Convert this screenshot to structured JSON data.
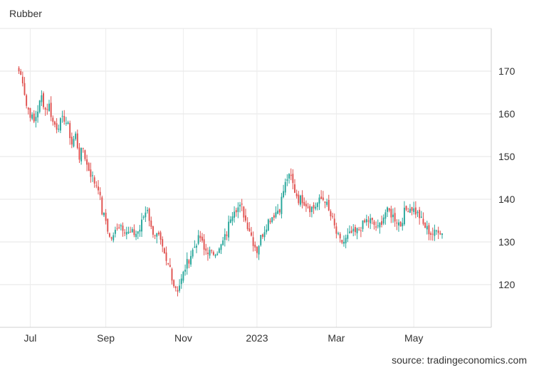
{
  "chart_data": {
    "type": "candlestick",
    "title": "Rubber",
    "source": "source: tradingeconomics.com",
    "ylim": [
      110,
      180
    ],
    "y_ticks": [
      120,
      130,
      140,
      150,
      160,
      170
    ],
    "y_tick_labels": [
      "120",
      "130",
      "140",
      "150",
      "160",
      "170"
    ],
    "x_tick_labels": [
      "Jul",
      "Sep",
      "Nov",
      "2023",
      "Mar",
      "May"
    ],
    "x_tick_positions": [
      6,
      46,
      87,
      126,
      168,
      209
    ],
    "x_range": [
      -10,
      250
    ],
    "grid": true,
    "up_color": "#26a69a",
    "down_color": "#e0514f",
    "anchors": [
      [
        0,
        170
      ],
      [
        2,
        168
      ],
      [
        4,
        162
      ],
      [
        6,
        160
      ],
      [
        8,
        158
      ],
      [
        10,
        161
      ],
      [
        12,
        164
      ],
      [
        14,
        161
      ],
      [
        16,
        162
      ],
      [
        18,
        158
      ],
      [
        20,
        157
      ],
      [
        22,
        158
      ],
      [
        24,
        159
      ],
      [
        26,
        157
      ],
      [
        28,
        153
      ],
      [
        30,
        155
      ],
      [
        32,
        150
      ],
      [
        34,
        152
      ],
      [
        36,
        148
      ],
      [
        38,
        146
      ],
      [
        40,
        144
      ],
      [
        42,
        143
      ],
      [
        44,
        137
      ],
      [
        46,
        135
      ],
      [
        48,
        131
      ],
      [
        50,
        131
      ],
      [
        52,
        134
      ],
      [
        54,
        134
      ],
      [
        56,
        133
      ],
      [
        58,
        132
      ],
      [
        60,
        132
      ],
      [
        62,
        132
      ],
      [
        64,
        133
      ],
      [
        66,
        136
      ],
      [
        68,
        138
      ],
      [
        70,
        133
      ],
      [
        72,
        132
      ],
      [
        74,
        131
      ],
      [
        76,
        128
      ],
      [
        78,
        125
      ],
      [
        80,
        124
      ],
      [
        82,
        120
      ],
      [
        84,
        119
      ],
      [
        86,
        121
      ],
      [
        88,
        124
      ],
      [
        90,
        126
      ],
      [
        92,
        128
      ],
      [
        94,
        130
      ],
      [
        96,
        131
      ],
      [
        98,
        128
      ],
      [
        100,
        128
      ],
      [
        102,
        127
      ],
      [
        104,
        128
      ],
      [
        106,
        128
      ],
      [
        108,
        130
      ],
      [
        110,
        132
      ],
      [
        112,
        136
      ],
      [
        114,
        138
      ],
      [
        116,
        138
      ],
      [
        118,
        138
      ],
      [
        120,
        135
      ],
      [
        122,
        133
      ],
      [
        124,
        130
      ],
      [
        126,
        128
      ],
      [
        128,
        131
      ],
      [
        130,
        133
      ],
      [
        132,
        135
      ],
      [
        134,
        136
      ],
      [
        136,
        137
      ],
      [
        138,
        138
      ],
      [
        140,
        142
      ],
      [
        142,
        145
      ],
      [
        144,
        145
      ],
      [
        146,
        142
      ],
      [
        148,
        140
      ],
      [
        150,
        140
      ],
      [
        152,
        139
      ],
      [
        154,
        138
      ],
      [
        156,
        138
      ],
      [
        158,
        139
      ],
      [
        160,
        140
      ],
      [
        162,
        140
      ],
      [
        164,
        137
      ],
      [
        166,
        135
      ],
      [
        168,
        132
      ],
      [
        170,
        130
      ],
      [
        172,
        130
      ],
      [
        174,
        131
      ],
      [
        176,
        132
      ],
      [
        178,
        132
      ],
      [
        180,
        133
      ],
      [
        182,
        134
      ],
      [
        184,
        135
      ],
      [
        186,
        135
      ],
      [
        188,
        134
      ],
      [
        190,
        133
      ],
      [
        192,
        135
      ],
      [
        194,
        137
      ],
      [
        196,
        137
      ],
      [
        198,
        136
      ],
      [
        200,
        135
      ],
      [
        202,
        134
      ],
      [
        204,
        137
      ],
      [
        206,
        138
      ],
      [
        208,
        138
      ],
      [
        210,
        137
      ],
      [
        212,
        136
      ],
      [
        214,
        134
      ],
      [
        216,
        133
      ],
      [
        218,
        132
      ],
      [
        220,
        132
      ],
      [
        222,
        133
      ],
      [
        224,
        132
      ]
    ],
    "last_close": 132
  }
}
